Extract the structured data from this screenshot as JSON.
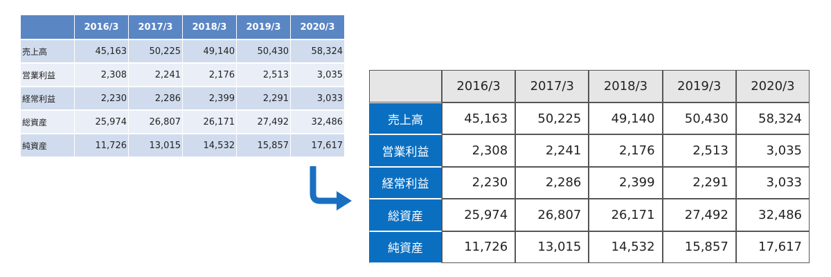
{
  "table": {
    "columns": [
      "2016/3",
      "2017/3",
      "2018/3",
      "2019/3",
      "2020/3"
    ],
    "rows": [
      {
        "label": "売上高",
        "cells": [
          "45,163",
          "50,225",
          "49,140",
          "50,430",
          "58,324"
        ]
      },
      {
        "label": "営業利益",
        "cells": [
          "2,308",
          "2,241",
          "2,176",
          "2,513",
          "3,035"
        ]
      },
      {
        "label": "経常利益",
        "cells": [
          "2,230",
          "2,286",
          "2,399",
          "2,291",
          "3,033"
        ]
      },
      {
        "label": "総資産",
        "cells": [
          "25,974",
          "26,807",
          "26,171",
          "27,492",
          "32,486"
        ]
      },
      {
        "label": "純資産",
        "cells": [
          "11,726",
          "13,015",
          "14,532",
          "15,857",
          "17,617"
        ]
      }
    ]
  }
}
